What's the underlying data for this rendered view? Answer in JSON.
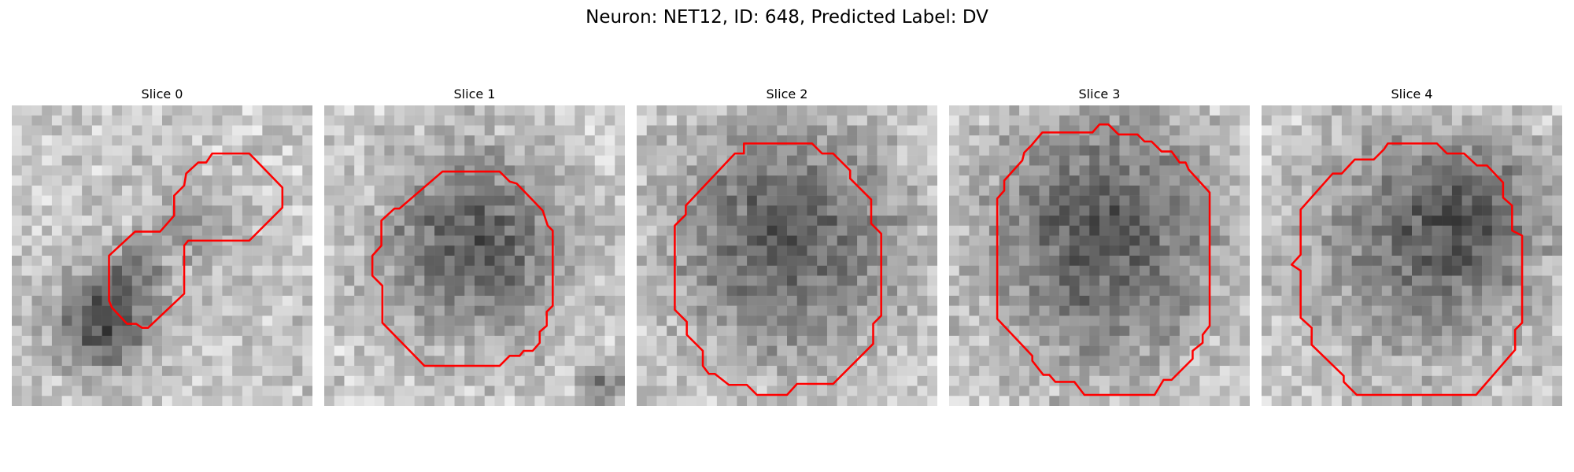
{
  "figure": {
    "title": "Neuron: NET12, ID: 648, Predicted Label: DV"
  },
  "panels": [
    {
      "title": "Slice 0",
      "contour_color": "#ff0000"
    },
    {
      "title": "Slice 1",
      "contour_color": "#ff0000"
    },
    {
      "title": "Slice 2",
      "contour_color": "#ff0000"
    },
    {
      "title": "Slice 3",
      "contour_color": "#ff0000"
    },
    {
      "title": "Slice 4",
      "contour_color": "#ff0000"
    }
  ]
}
